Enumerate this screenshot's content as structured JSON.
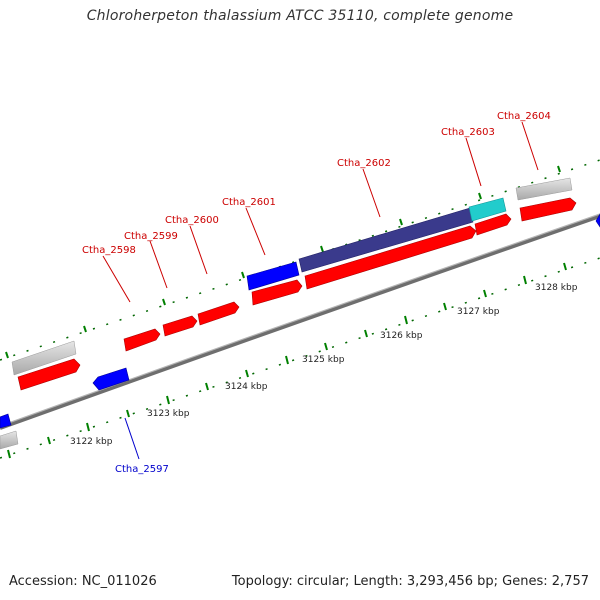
{
  "title": "Chloroherpeton thalassium ATCC 35110, complete genome",
  "footer": {
    "accession": "Accession: NC_011026",
    "summary": "Topology: circular; Length: 3,293,456 bp; Genes: 2,757"
  },
  "colors": {
    "forward_gene": "#ff0000",
    "reverse_gene": "#0000ff",
    "other_feature": "#c0c0c0",
    "selected_gene": "#3a3a8c",
    "cyan_feature": "#22cccc",
    "axis": "#888888",
    "tick": "#008000",
    "label_forward": "#cc0000",
    "label_reverse": "#0000cc"
  },
  "axis_ticks": [
    {
      "label": "3122 kbp"
    },
    {
      "label": "3123 kbp"
    },
    {
      "label": "3124 kbp"
    },
    {
      "label": "3125 kbp"
    },
    {
      "label": "3126 kbp"
    },
    {
      "label": "3127 kbp"
    },
    {
      "label": "3128 kbp"
    }
  ],
  "gene_labels": [
    {
      "name": "Ctha_2597",
      "strand": "reverse"
    },
    {
      "name": "Ctha_2598",
      "strand": "forward"
    },
    {
      "name": "Ctha_2599",
      "strand": "forward"
    },
    {
      "name": "Ctha_2600",
      "strand": "forward"
    },
    {
      "name": "Ctha_2601",
      "strand": "forward"
    },
    {
      "name": "Ctha_2602",
      "strand": "forward"
    },
    {
      "name": "Ctha_2603",
      "strand": "forward"
    },
    {
      "name": "Ctha_2604",
      "strand": "forward"
    }
  ]
}
